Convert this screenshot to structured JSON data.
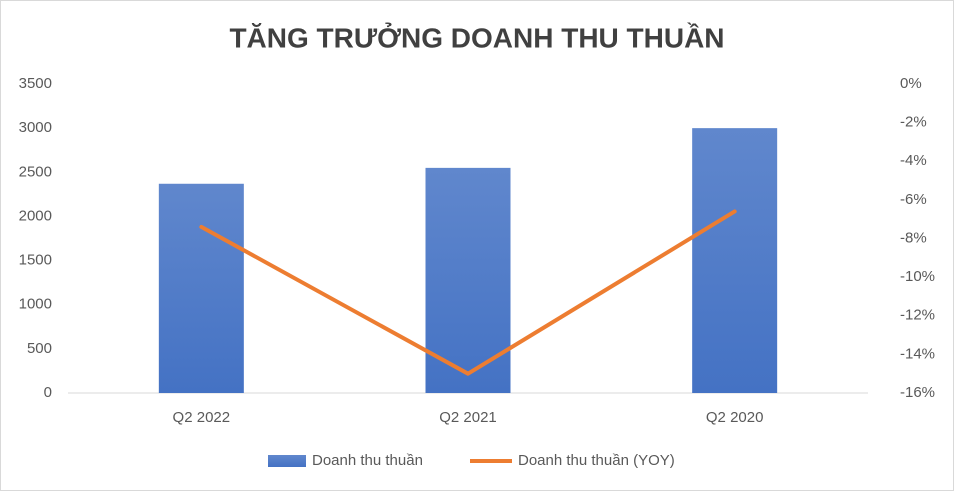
{
  "chart_data": {
    "type": "combo",
    "title": "TĂNG TRƯỞNG DOANH THU THUẦN",
    "categories": [
      "Q2 2022",
      "Q2 2021",
      "Q2 2020"
    ],
    "series": [
      {
        "name": "Doanh thu thuần",
        "type": "bar",
        "color": "#4472c4",
        "values": [
          2370,
          2550,
          3000
        ]
      },
      {
        "name": "Doanh thu thuần (YOY)",
        "type": "line",
        "axis": "y2",
        "color": "#ed7d31",
        "values": [
          -7.4,
          -15,
          -6.6
        ]
      }
    ],
    "ylim": [
      0,
      3500
    ],
    "yticks": [
      0,
      500,
      1000,
      1500,
      2000,
      2500,
      3000,
      3500
    ],
    "y2lim": [
      -16,
      0
    ],
    "y2ticks": [
      {
        "value": 0,
        "label": "0%"
      },
      {
        "value": -2,
        "label": "-2%"
      },
      {
        "value": -4,
        "label": "-4%"
      },
      {
        "value": -6,
        "label": "-6%"
      },
      {
        "value": -8,
        "label": "-8%"
      },
      {
        "value": -10,
        "label": "-10%"
      },
      {
        "value": -12,
        "label": "-12%"
      },
      {
        "value": -14,
        "label": "-14%"
      },
      {
        "value": -16,
        "label": "-16%"
      }
    ],
    "legend": "bottom",
    "grid": false
  }
}
